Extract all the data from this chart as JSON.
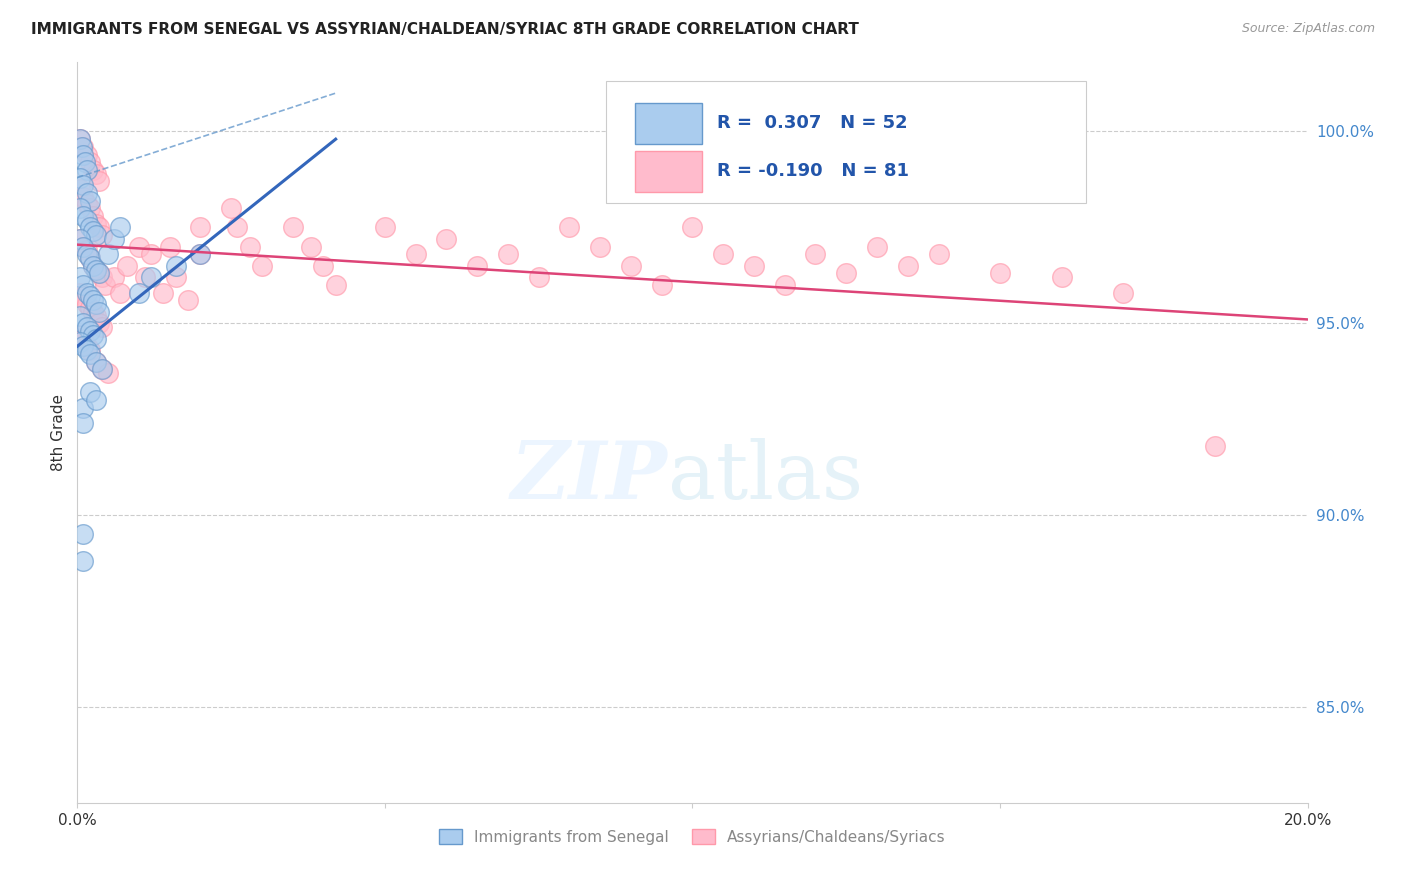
{
  "title": "IMMIGRANTS FROM SENEGAL VS ASSYRIAN/CHALDEAN/SYRIAC 8TH GRADE CORRELATION CHART",
  "source": "Source: ZipAtlas.com",
  "ylabel": "8th Grade",
  "ytick_labels": [
    "85.0%",
    "90.0%",
    "95.0%",
    "100.0%"
  ],
  "ytick_values": [
    0.85,
    0.9,
    0.95,
    1.0
  ],
  "xlim": [
    0.0,
    0.2
  ],
  "ylim": [
    0.825,
    1.018
  ],
  "legend_label1": "Immigrants from Senegal",
  "legend_label2": "Assyrians/Chaldeans/Syriacs",
  "blue_scatter": [
    [
      0.0005,
      0.998
    ],
    [
      0.0008,
      0.996
    ],
    [
      0.001,
      0.994
    ],
    [
      0.0012,
      0.992
    ],
    [
      0.0015,
      0.99
    ],
    [
      0.0005,
      0.988
    ],
    [
      0.001,
      0.986
    ],
    [
      0.0015,
      0.984
    ],
    [
      0.002,
      0.982
    ],
    [
      0.0005,
      0.98
    ],
    [
      0.001,
      0.978
    ],
    [
      0.0015,
      0.977
    ],
    [
      0.002,
      0.975
    ],
    [
      0.0025,
      0.974
    ],
    [
      0.003,
      0.973
    ],
    [
      0.0005,
      0.972
    ],
    [
      0.001,
      0.97
    ],
    [
      0.0015,
      0.968
    ],
    [
      0.002,
      0.967
    ],
    [
      0.0025,
      0.965
    ],
    [
      0.003,
      0.964
    ],
    [
      0.0035,
      0.963
    ],
    [
      0.0005,
      0.962
    ],
    [
      0.001,
      0.96
    ],
    [
      0.0015,
      0.958
    ],
    [
      0.002,
      0.957
    ],
    [
      0.0025,
      0.956
    ],
    [
      0.003,
      0.955
    ],
    [
      0.0035,
      0.953
    ],
    [
      0.0005,
      0.952
    ],
    [
      0.001,
      0.95
    ],
    [
      0.0015,
      0.949
    ],
    [
      0.002,
      0.948
    ],
    [
      0.0025,
      0.947
    ],
    [
      0.003,
      0.946
    ],
    [
      0.0005,
      0.945
    ],
    [
      0.001,
      0.944
    ],
    [
      0.0015,
      0.943
    ],
    [
      0.002,
      0.942
    ],
    [
      0.003,
      0.94
    ],
    [
      0.004,
      0.938
    ],
    [
      0.005,
      0.968
    ],
    [
      0.006,
      0.972
    ],
    [
      0.007,
      0.975
    ],
    [
      0.01,
      0.958
    ],
    [
      0.012,
      0.962
    ],
    [
      0.016,
      0.965
    ],
    [
      0.02,
      0.968
    ],
    [
      0.001,
      0.928
    ],
    [
      0.001,
      0.924
    ],
    [
      0.002,
      0.932
    ],
    [
      0.003,
      0.93
    ],
    [
      0.001,
      0.895
    ],
    [
      0.001,
      0.888
    ]
  ],
  "pink_scatter": [
    [
      0.0005,
      0.998
    ],
    [
      0.001,
      0.996
    ],
    [
      0.0015,
      0.994
    ],
    [
      0.002,
      0.992
    ],
    [
      0.0025,
      0.99
    ],
    [
      0.003,
      0.989
    ],
    [
      0.0035,
      0.987
    ],
    [
      0.0005,
      0.985
    ],
    [
      0.001,
      0.983
    ],
    [
      0.0015,
      0.981
    ],
    [
      0.002,
      0.98
    ],
    [
      0.0025,
      0.978
    ],
    [
      0.003,
      0.976
    ],
    [
      0.0035,
      0.975
    ],
    [
      0.004,
      0.973
    ],
    [
      0.0005,
      0.972
    ],
    [
      0.001,
      0.97
    ],
    [
      0.0015,
      0.969
    ],
    [
      0.002,
      0.967
    ],
    [
      0.0025,
      0.965
    ],
    [
      0.003,
      0.964
    ],
    [
      0.0035,
      0.963
    ],
    [
      0.004,
      0.962
    ],
    [
      0.0045,
      0.96
    ],
    [
      0.0005,
      0.958
    ],
    [
      0.001,
      0.957
    ],
    [
      0.0015,
      0.955
    ],
    [
      0.002,
      0.954
    ],
    [
      0.0025,
      0.953
    ],
    [
      0.003,
      0.952
    ],
    [
      0.0035,
      0.95
    ],
    [
      0.004,
      0.949
    ],
    [
      0.0005,
      0.947
    ],
    [
      0.001,
      0.946
    ],
    [
      0.0015,
      0.944
    ],
    [
      0.002,
      0.943
    ],
    [
      0.003,
      0.94
    ],
    [
      0.004,
      0.938
    ],
    [
      0.005,
      0.937
    ],
    [
      0.006,
      0.962
    ],
    [
      0.007,
      0.958
    ],
    [
      0.008,
      0.965
    ],
    [
      0.01,
      0.97
    ],
    [
      0.011,
      0.962
    ],
    [
      0.012,
      0.968
    ],
    [
      0.014,
      0.958
    ],
    [
      0.015,
      0.97
    ],
    [
      0.016,
      0.962
    ],
    [
      0.018,
      0.956
    ],
    [
      0.02,
      0.975
    ],
    [
      0.02,
      0.968
    ],
    [
      0.025,
      0.98
    ],
    [
      0.026,
      0.975
    ],
    [
      0.028,
      0.97
    ],
    [
      0.03,
      0.965
    ],
    [
      0.035,
      0.975
    ],
    [
      0.038,
      0.97
    ],
    [
      0.04,
      0.965
    ],
    [
      0.042,
      0.96
    ],
    [
      0.05,
      0.975
    ],
    [
      0.055,
      0.968
    ],
    [
      0.06,
      0.972
    ],
    [
      0.065,
      0.965
    ],
    [
      0.07,
      0.968
    ],
    [
      0.075,
      0.962
    ],
    [
      0.08,
      0.975
    ],
    [
      0.085,
      0.97
    ],
    [
      0.09,
      0.965
    ],
    [
      0.095,
      0.96
    ],
    [
      0.1,
      0.975
    ],
    [
      0.105,
      0.968
    ],
    [
      0.11,
      0.965
    ],
    [
      0.115,
      0.96
    ],
    [
      0.12,
      0.968
    ],
    [
      0.125,
      0.963
    ],
    [
      0.13,
      0.97
    ],
    [
      0.135,
      0.965
    ],
    [
      0.14,
      0.968
    ],
    [
      0.15,
      0.963
    ],
    [
      0.16,
      0.962
    ],
    [
      0.17,
      0.958
    ],
    [
      0.185,
      0.918
    ]
  ],
  "blue_line_x0": 0.0,
  "blue_line_x1": 0.042,
  "blue_line_y0": 0.944,
  "blue_line_y1": 0.998,
  "pink_line_x0": 0.0,
  "pink_line_x1": 0.2,
  "pink_line_y0": 0.9705,
  "pink_line_y1": 0.951,
  "dash_line_x0": 0.0,
  "dash_line_x1": 0.042,
  "dash_line_y0": 0.988,
  "dash_line_y1": 1.01
}
